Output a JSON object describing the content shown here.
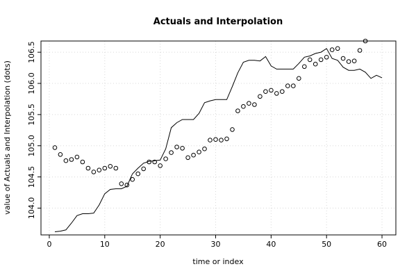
{
  "chart_data": {
    "type": "line",
    "title": "Actuals and Interpolation",
    "xlabel": "time or index",
    "ylabel": "value of Actuals and Interpolation (dots)",
    "xlim": [
      -1.5,
      62.5
    ],
    "ylim": [
      103.57,
      106.68
    ],
    "grid": true,
    "x_ticks": [
      0,
      10,
      20,
      30,
      40,
      50,
      60
    ],
    "y_ticks": [
      104.0,
      104.5,
      105.0,
      105.5,
      106.0,
      106.5
    ],
    "x_tick_labels": [
      "0",
      "10",
      "20",
      "30",
      "40",
      "50",
      "60"
    ],
    "y_tick_labels": [
      "104.0",
      "104.5",
      "105.0",
      "105.5",
      "106.0",
      "106.5"
    ],
    "series": [
      {
        "style": "points",
        "x": [
          1,
          2,
          3,
          4,
          5,
          6,
          7,
          8,
          9,
          10,
          11,
          12,
          13,
          14,
          15,
          16,
          17,
          18,
          19,
          20,
          21,
          22,
          23,
          24,
          25,
          26,
          27,
          28,
          29,
          30,
          31,
          32,
          33,
          34,
          35,
          36,
          37,
          38,
          39,
          40,
          41,
          42,
          43,
          44,
          45,
          46,
          47,
          48,
          49,
          50,
          51,
          52,
          53,
          54,
          55,
          56,
          57
        ],
        "values": [
          104.97,
          104.86,
          104.76,
          104.78,
          104.82,
          104.74,
          104.64,
          104.58,
          104.61,
          104.64,
          104.67,
          104.64,
          104.39,
          104.37,
          104.46,
          104.55,
          104.63,
          104.74,
          104.74,
          104.68,
          104.79,
          104.89,
          104.98,
          104.96,
          104.81,
          104.85,
          104.9,
          104.95,
          105.09,
          105.1,
          105.09,
          105.11,
          105.26,
          105.56,
          105.63,
          105.68,
          105.66,
          105.79,
          105.87,
          105.89,
          105.84,
          105.87,
          105.96,
          105.96,
          106.08,
          106.27,
          106.38,
          106.31,
          106.38,
          106.42,
          106.54,
          106.56,
          106.4,
          106.35,
          106.36,
          106.53,
          106.68
        ]
      },
      {
        "style": "line",
        "x": [
          1,
          2,
          3,
          4,
          5,
          6,
          7,
          8,
          9,
          10,
          11,
          12,
          13,
          14,
          15,
          16,
          17,
          18,
          19,
          20,
          21,
          22,
          23,
          24,
          25,
          26,
          27,
          28,
          29,
          30,
          31,
          32,
          33,
          34,
          35,
          36,
          37,
          38,
          39,
          40,
          41,
          42,
          43,
          44,
          45,
          46,
          47,
          48,
          49,
          50,
          51,
          52,
          53,
          54,
          55,
          56,
          57,
          58,
          59,
          60
        ],
        "values": [
          103.62,
          103.63,
          103.65,
          103.76,
          103.88,
          103.91,
          103.91,
          103.92,
          104.05,
          104.23,
          104.3,
          104.31,
          104.31,
          104.35,
          104.55,
          104.64,
          104.72,
          104.75,
          104.76,
          104.77,
          104.95,
          105.29,
          105.37,
          105.42,
          105.42,
          105.42,
          105.52,
          105.69,
          105.72,
          105.74,
          105.74,
          105.74,
          105.95,
          106.17,
          106.34,
          106.37,
          106.37,
          106.36,
          106.43,
          106.28,
          106.23,
          106.23,
          106.23,
          106.23,
          106.32,
          106.42,
          106.44,
          106.48,
          106.5,
          106.56,
          106.4,
          106.37,
          106.26,
          106.21,
          106.21,
          106.23,
          106.18,
          106.08,
          106.13,
          106.09
        ]
      }
    ]
  }
}
